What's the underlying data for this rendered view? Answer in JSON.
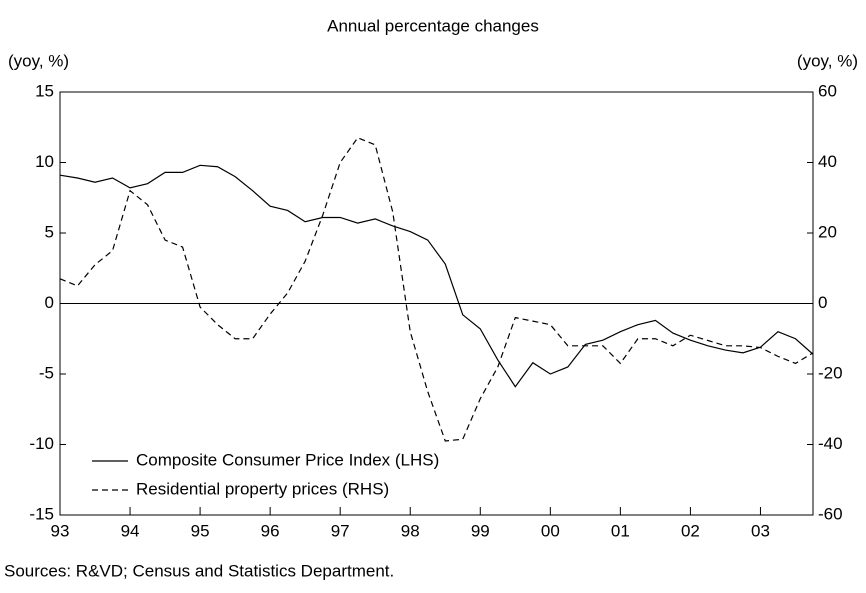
{
  "chart_data": {
    "type": "line",
    "title": "Annual percentage changes",
    "y_label": "(yoy, %)",
    "y2_label": "(yoy, %)",
    "source": "Sources: R&VD; Census and Statistics Department.",
    "x": [
      1993,
      1993.25,
      1993.5,
      1993.75,
      1994,
      1994.25,
      1994.5,
      1994.75,
      1995,
      1995.25,
      1995.5,
      1995.75,
      1996,
      1996.25,
      1996.5,
      1996.75,
      1997,
      1997.25,
      1997.5,
      1997.75,
      1998,
      1998.25,
      1998.5,
      1998.75,
      1999,
      1999.25,
      1999.5,
      1999.75,
      2000,
      2000.25,
      2000.5,
      2000.75,
      2001,
      2001.25,
      2001.5,
      2001.75,
      2002,
      2002.25,
      2002.5,
      2002.75,
      2003,
      2003.25,
      2003.5,
      2003.75
    ],
    "series": [
      {
        "name": "Composite Consumer Price Index (LHS)",
        "color": "#000000",
        "dash": "solid",
        "axis": "y",
        "values": [
          9.1,
          8.9,
          8.6,
          8.9,
          8.2,
          8.5,
          9.3,
          9.3,
          9.8,
          9.7,
          9.0,
          8.0,
          6.9,
          6.6,
          5.8,
          6.1,
          6.1,
          5.7,
          6.0,
          5.5,
          5.1,
          4.5,
          2.8,
          -0.8,
          -1.8,
          -4.0,
          -5.9,
          -4.2,
          -5.0,
          -4.5,
          -2.9,
          -2.6,
          -2.0,
          -1.5,
          -1.2,
          -2.1,
          -2.6,
          -3.0,
          -3.3,
          -3.5,
          -3.1,
          -2.0,
          -2.5,
          -3.6
        ]
      },
      {
        "name": "Residential property prices (RHS)",
        "color": "#000000",
        "dash": "dashed",
        "axis": "y2",
        "values": [
          7,
          5,
          11,
          15,
          32,
          28,
          18,
          16,
          -1,
          -6,
          -10,
          -10,
          -3,
          3,
          12,
          25,
          40,
          47,
          45,
          26,
          -8,
          -25,
          -39,
          -38.5,
          -27,
          -18,
          -4,
          -5,
          -6,
          -12,
          -12,
          -12,
          -17,
          -10,
          -10,
          -12,
          -9,
          -10.5,
          -12,
          -12,
          -12.5,
          -15,
          -17,
          -14
        ]
      }
    ],
    "xlim": [
      1993,
      2003.75
    ],
    "xticks": [
      {
        "value": 1993,
        "label": "93"
      },
      {
        "value": 1994,
        "label": "94"
      },
      {
        "value": 1995,
        "label": "95"
      },
      {
        "value": 1996,
        "label": "96"
      },
      {
        "value": 1997,
        "label": "97"
      },
      {
        "value": 1998,
        "label": "98"
      },
      {
        "value": 1999,
        "label": "99"
      },
      {
        "value": 2000,
        "label": "00"
      },
      {
        "value": 2001,
        "label": "01"
      },
      {
        "value": 2002,
        "label": "02"
      },
      {
        "value": 2003,
        "label": "03"
      }
    ],
    "ylim": [
      -15,
      15
    ],
    "yticks": [
      -15,
      -10,
      -5,
      0,
      5,
      10,
      15
    ],
    "y2lim": [
      -60,
      60
    ],
    "y2ticks": [
      -60,
      -40,
      -20,
      0,
      20,
      40,
      60
    ],
    "legend": "lower left"
  }
}
